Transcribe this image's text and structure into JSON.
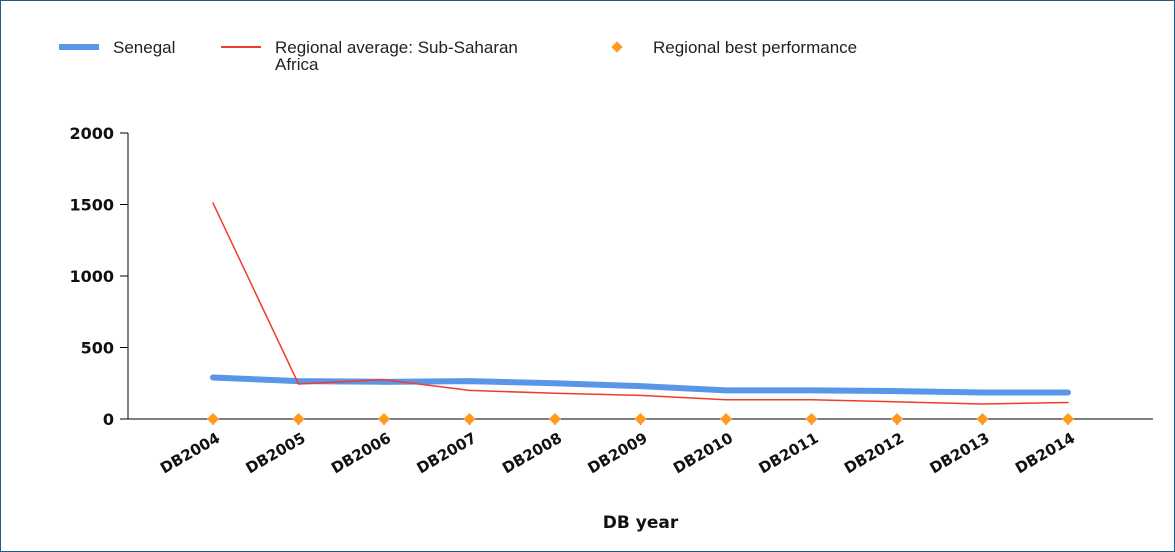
{
  "chart_data": {
    "type": "line",
    "x_label": "DB year",
    "categories": [
      "DB2004",
      "DB2005",
      "DB2006",
      "DB2007",
      "DB2008",
      "DB2009",
      "DB2010",
      "DB2011",
      "DB2012",
      "DB2013",
      "DB2014"
    ],
    "series": [
      {
        "name": "Senegal",
        "color": "#5a96e8",
        "mode": "line",
        "width": 6,
        "values": [
          290,
          265,
          260,
          265,
          250,
          230,
          200,
          200,
          195,
          185,
          185
        ]
      },
      {
        "name": "Regional average: Sub-Saharan Africa",
        "color": "#f03c2c",
        "mode": "line",
        "width": 1.5,
        "values": [
          1510,
          245,
          275,
          200,
          180,
          165,
          135,
          135,
          120,
          105,
          115
        ]
      },
      {
        "name": "Regional best performance",
        "color": "#ff9a1c",
        "mode": "markers",
        "values": [
          0,
          0,
          0,
          0,
          0,
          0,
          0,
          0,
          0,
          0,
          0
        ]
      }
    ],
    "ylim": [
      0,
      2000
    ],
    "yticks": [
      0,
      500,
      1000,
      1500,
      2000
    ]
  }
}
